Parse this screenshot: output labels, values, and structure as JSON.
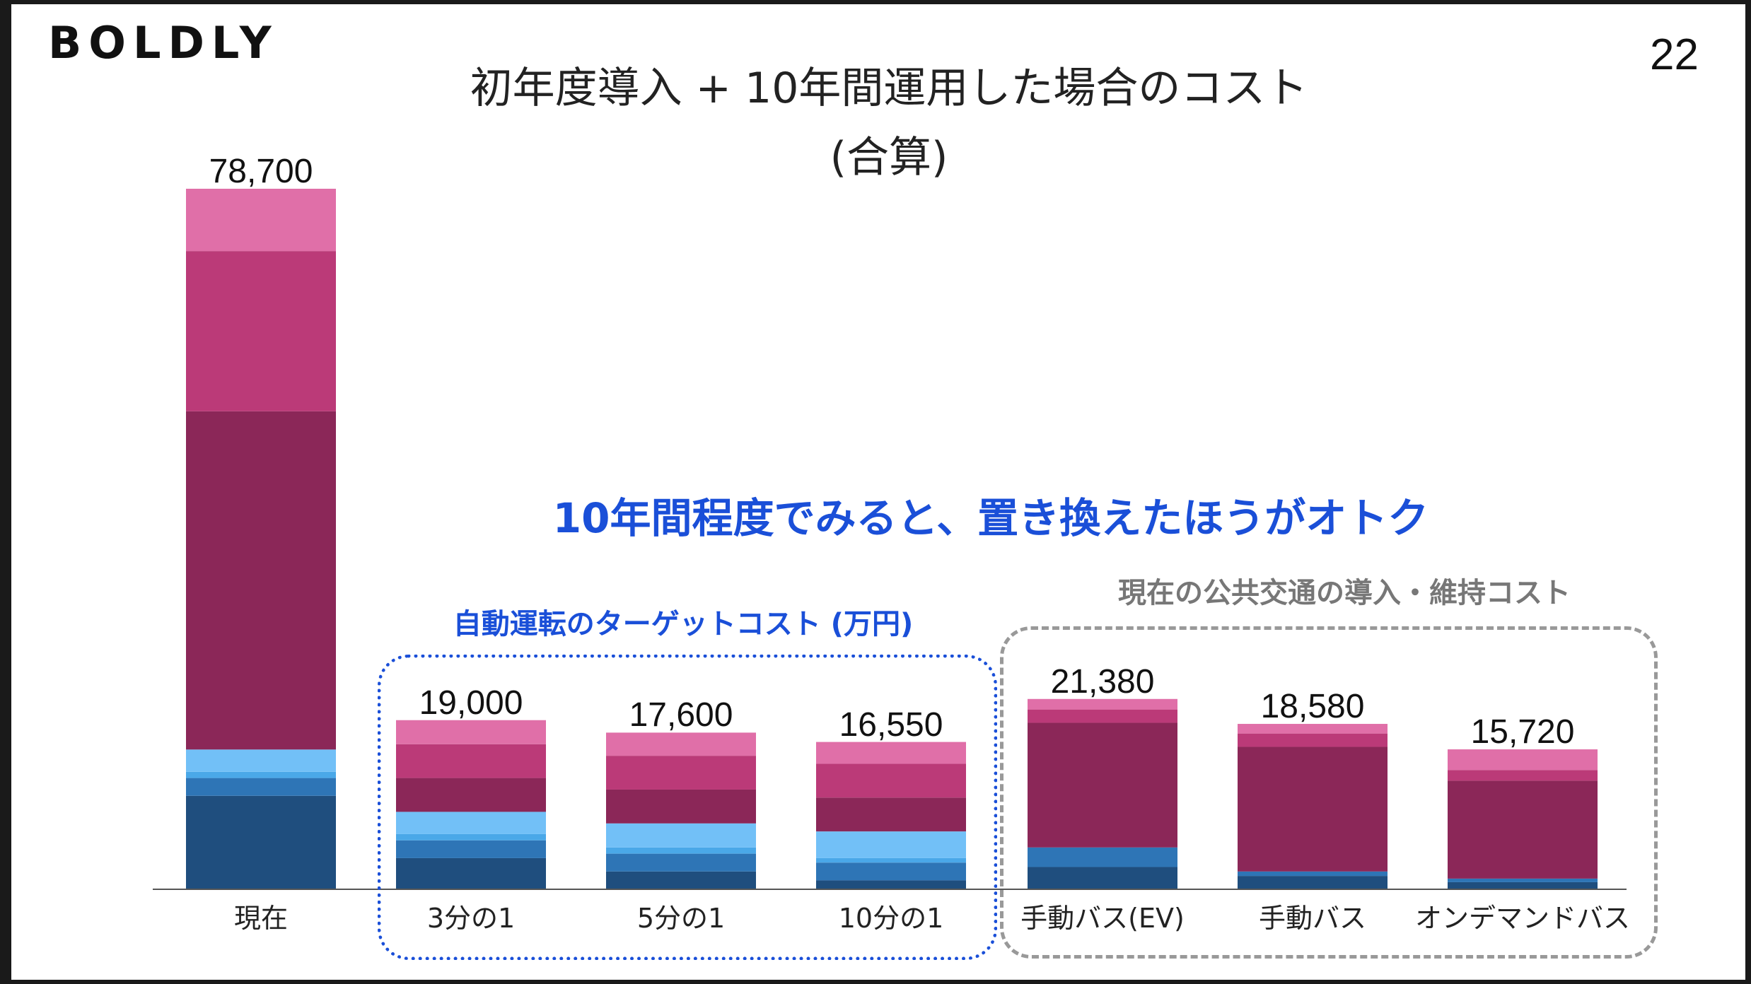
{
  "logo": "BOLDLY",
  "page_number": "22",
  "title_line1": "初年度導入 + 10年間運用した場合のコスト",
  "title_line2": "(合算)",
  "headline": "10年間程度でみると、置き換えたほうがオトク",
  "group_autonomous_label": "自動運転のターゲットコスト (万円)",
  "group_current_label": "現在の公共交通の導入・維持コスト",
  "colors": {
    "seg1": "#1f4e7e",
    "seg2": "#2e75b6",
    "seg3": "#4aa8e8",
    "seg4": "#72c0f7",
    "seg5": "#8b2758",
    "seg6": "#bb3a78",
    "seg7": "#e06fa8",
    "accent_blue": "#1a4fd8",
    "gray": "#999999"
  },
  "chart_data": {
    "type": "bar",
    "stacked": true,
    "categories": [
      "現在",
      "3分の1",
      "5分の1",
      "10分の1",
      "手動バス(EV)",
      "手動バス",
      "オンデマンドバス"
    ],
    "totals": [
      "78,700",
      "19,000",
      "17,600",
      "16,550",
      "21,380",
      "18,580",
      "15,720"
    ],
    "total_values": [
      78700,
      19000,
      17600,
      16550,
      21380,
      18580,
      15720
    ],
    "series": [
      {
        "values": [
          10500,
          3500,
          2000,
          1000,
          2500,
          1500,
          800
        ]
      },
      {
        "values": [
          2000,
          2000,
          2000,
          2000,
          2200,
          500,
          400
        ]
      },
      {
        "values": [
          700,
          700,
          700,
          500,
          0,
          0,
          0
        ]
      },
      {
        "values": [
          2500,
          2500,
          2700,
          3000,
          0,
          0,
          0
        ]
      },
      {
        "values": [
          38000,
          3800,
          3800,
          3800,
          14000,
          14000,
          11000
        ]
      },
      {
        "values": [
          18000,
          3800,
          3800,
          3800,
          1500,
          1500,
          1200
        ]
      },
      {
        "values": [
          7000,
          2700,
          2600,
          2450,
          1180,
          1080,
          2320
        ]
      }
    ],
    "ylim": [
      0,
      78700
    ],
    "grid": false
  }
}
